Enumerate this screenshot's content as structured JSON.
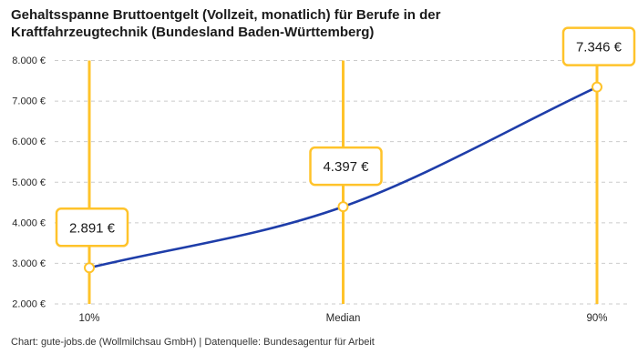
{
  "header": {
    "title_lines": [
      "Gehaltsspanne Bruttoentgelt (Vollzeit, monatlich) für Berufe in der",
      "Kraftfahrzeugtechnik (Bundesland Baden-Württemberg)"
    ]
  },
  "footer": {
    "credit": "Chart: gute-jobs.de (Wollmilchsau GmbH) | Datenquelle: Bundesagentur für Arbeit"
  },
  "chart_data": {
    "type": "line",
    "title": "Gehaltsspanne Bruttoentgelt (Vollzeit, monatlich) für Berufe in der Kraftfahrzeugtechnik (Bundesland Baden-Württemberg)",
    "categories": [
      "10%",
      "Median",
      "90%"
    ],
    "values": [
      2891,
      4397,
      7346
    ],
    "value_labels": [
      "2.891 €",
      "4.397 €",
      "7.346 €"
    ],
    "unit": "€",
    "xlabel": "",
    "ylabel": "",
    "ylim": [
      2000,
      8000
    ],
    "ytick_step": 1000,
    "ytick_labels": [
      "2.000 €",
      "3.000 €",
      "4.000 €",
      "5.000 €",
      "6.000 €",
      "7.000 €",
      "8.000 €"
    ],
    "grid": "horizontal-dashed",
    "legend": "none",
    "colors": {
      "series_line": "#1e3da9",
      "highlight": "#ffc32a",
      "gridline": "#cbcbcb",
      "tick_text": "#262626",
      "callout_text": "#1a1a1a",
      "callout_fill": "#ffffff",
      "background": "#ffffff"
    }
  }
}
